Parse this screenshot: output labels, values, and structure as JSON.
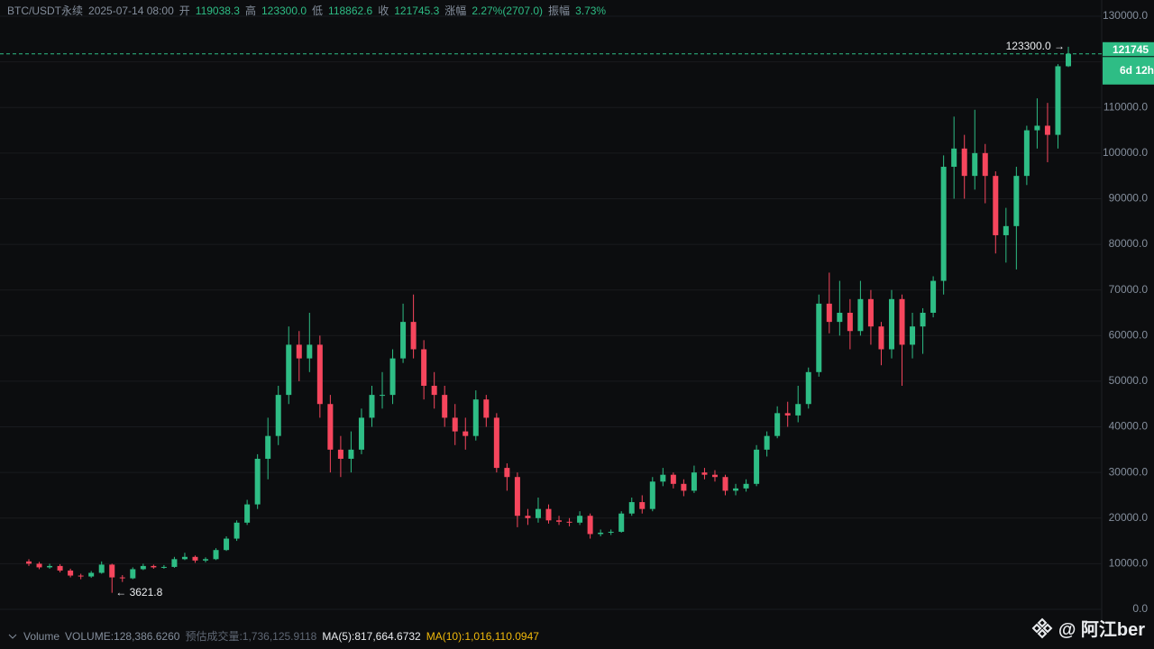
{
  "header": {
    "symbol": "BTC/USDT永续",
    "time": "2025-07-14 08:00",
    "fields": [
      {
        "label": "开",
        "value": "119038.3"
      },
      {
        "label": "高",
        "value": "123300.0"
      },
      {
        "label": "低",
        "value": "118862.6"
      },
      {
        "label": "收",
        "value": "121745.3"
      },
      {
        "label": "涨幅",
        "value": "2.27%(2707.0)"
      },
      {
        "label": "振幅",
        "value": "3.73%"
      }
    ]
  },
  "chart_data": {
    "type": "candlestick",
    "up_color": "#2ebd85",
    "down_color": "#f6465d",
    "grid": true,
    "ylim": [
      0,
      130000
    ],
    "yticks": [
      {
        "value": 0,
        "label": "0.0"
      },
      {
        "value": 10000,
        "label": "10000.0"
      },
      {
        "value": 20000,
        "label": "20000.0"
      },
      {
        "value": 30000,
        "label": "30000.0"
      },
      {
        "value": 40000,
        "label": "40000.0"
      },
      {
        "value": 50000,
        "label": "50000.0"
      },
      {
        "value": 60000,
        "label": "60000.0"
      },
      {
        "value": 70000,
        "label": "70000.0"
      },
      {
        "value": 80000,
        "label": "80000.0"
      },
      {
        "value": 90000,
        "label": "90000.0"
      },
      {
        "value": 100000,
        "label": "100000.0"
      },
      {
        "value": 110000,
        "label": "110000.0"
      },
      {
        "value": 120000,
        "label": "120000.0"
      },
      {
        "value": 130000,
        "label": "130000.0"
      }
    ],
    "open": [
      10500,
      10000,
      9200,
      9500,
      8500,
      7400,
      7200,
      8000,
      9800,
      7000,
      6800,
      8800,
      9500,
      9200,
      9300,
      11000,
      11500,
      10700,
      11000,
      13000,
      15500,
      19000,
      23000,
      33000,
      38000,
      47000,
      58000,
      55000,
      58000,
      45000,
      35000,
      33000,
      35000,
      42000,
      47000,
      47000,
      55000,
      63000,
      57000,
      49000,
      47000,
      42000,
      39000,
      38000,
      46000,
      42000,
      31000,
      29000,
      20500,
      20000,
      22000,
      19500,
      19200,
      19000,
      20500,
      16500,
      16800,
      17000,
      21000,
      23500,
      22000,
      28000,
      29500,
      27500,
      26000,
      30000,
      29500,
      29000,
      26000,
      26500,
      27500,
      35000,
      38000,
      43000,
      42500,
      45000,
      52000,
      67000,
      63000,
      65000,
      61000,
      68000,
      62000,
      57000,
      68000,
      58000,
      62000,
      65000,
      72000,
      97000,
      101000,
      95000,
      100000,
      95000,
      82000,
      84000,
      95000,
      105000,
      106000,
      104000,
      119038.3
    ],
    "high": [
      11000,
      10400,
      10000,
      9900,
      8900,
      7800,
      8400,
      10500,
      10000,
      7500,
      9200,
      10000,
      9800,
      9700,
      11500,
      12400,
      11800,
      11400,
      13400,
      16000,
      19500,
      24000,
      34000,
      42000,
      49000,
      62000,
      61000,
      65000,
      60000,
      47000,
      38000,
      39000,
      44000,
      49000,
      52000,
      57000,
      67000,
      69000,
      59000,
      52000,
      49000,
      45000,
      42000,
      48000,
      47000,
      43000,
      32000,
      30000,
      22000,
      24500,
      23000,
      20500,
      20000,
      21500,
      21000,
      17500,
      17500,
      21500,
      24500,
      25000,
      29000,
      31000,
      30000,
      28500,
      31500,
      31000,
      30500,
      29500,
      27500,
      28500,
      36000,
      39000,
      44500,
      45500,
      49000,
      53000,
      69000,
      73800,
      72000,
      68000,
      72000,
      70000,
      63000,
      70000,
      69000,
      65000,
      66000,
      73000,
      99500,
      108000,
      104000,
      109500,
      102000,
      96000,
      88000,
      97000,
      106000,
      112000,
      111000,
      119500,
      123300
    ],
    "low": [
      9500,
      8800,
      8900,
      8100,
      7000,
      6600,
      6900,
      7800,
      3621.8,
      6000,
      6600,
      8600,
      8900,
      8900,
      9100,
      10800,
      10200,
      10300,
      10800,
      12800,
      15000,
      18500,
      22000,
      28500,
      36000,
      45000,
      50000,
      52000,
      42000,
      30000,
      29000,
      30000,
      34000,
      40000,
      44000,
      45000,
      54000,
      55000,
      46000,
      44000,
      40000,
      36000,
      35000,
      37000,
      40000,
      30000,
      26000,
      18000,
      18500,
      19000,
      18800,
      18500,
      18200,
      18500,
      15500,
      16000,
      16300,
      16800,
      20500,
      21000,
      21500,
      27000,
      26500,
      24800,
      25500,
      28500,
      28000,
      25000,
      25000,
      25800,
      27000,
      33500,
      37500,
      40000,
      41000,
      44000,
      51000,
      60500,
      60000,
      57000,
      60000,
      58000,
      53500,
      55000,
      49000,
      55000,
      56000,
      64000,
      69000,
      90000,
      90000,
      92000,
      89000,
      78000,
      76000,
      74500,
      93000,
      101000,
      98000,
      101000,
      118862.6
    ],
    "close": [
      10000,
      9200,
      9500,
      8500,
      7400,
      7200,
      8000,
      9800,
      7000,
      6800,
      8800,
      9500,
      9200,
      9300,
      11000,
      11500,
      10700,
      11000,
      13000,
      15500,
      19000,
      23000,
      33000,
      38000,
      47000,
      58000,
      55000,
      58000,
      45000,
      35000,
      33000,
      35000,
      42000,
      47000,
      47000,
      55000,
      63000,
      57000,
      49000,
      47000,
      42000,
      39000,
      38000,
      46000,
      42000,
      31000,
      29000,
      20500,
      20000,
      22000,
      19500,
      19200,
      19000,
      20500,
      16500,
      16800,
      17000,
      21000,
      23500,
      22000,
      28000,
      29500,
      27500,
      26000,
      30000,
      29500,
      29000,
      26000,
      26500,
      27500,
      35000,
      38000,
      43000,
      42500,
      45000,
      52000,
      67000,
      63000,
      65000,
      61000,
      68000,
      62000,
      57000,
      68000,
      58000,
      62000,
      65000,
      72000,
      97000,
      101000,
      95000,
      100000,
      95000,
      82000,
      84000,
      95000,
      105000,
      106000,
      104000,
      119038.3,
      121745.3
    ],
    "annotations": {
      "high": "123300.0 →",
      "low": "← 3621.8"
    },
    "price_tag": {
      "price": "121745",
      "countdown": "6d 12h"
    }
  },
  "volume_bar": {
    "title": "Volume",
    "items": [
      {
        "text": "VOLUME:128,386.6260",
        "color": "#848e9c"
      },
      {
        "text": "预估成交量:1,736,125.9118",
        "color": "#5e6673"
      },
      {
        "text": "MA(5):817,664.6732",
        "color": "#eaecef"
      },
      {
        "text": "MA(10):1,016,110.0947",
        "color": "#f0b90b"
      }
    ]
  },
  "watermark": "@ 阿江ber"
}
